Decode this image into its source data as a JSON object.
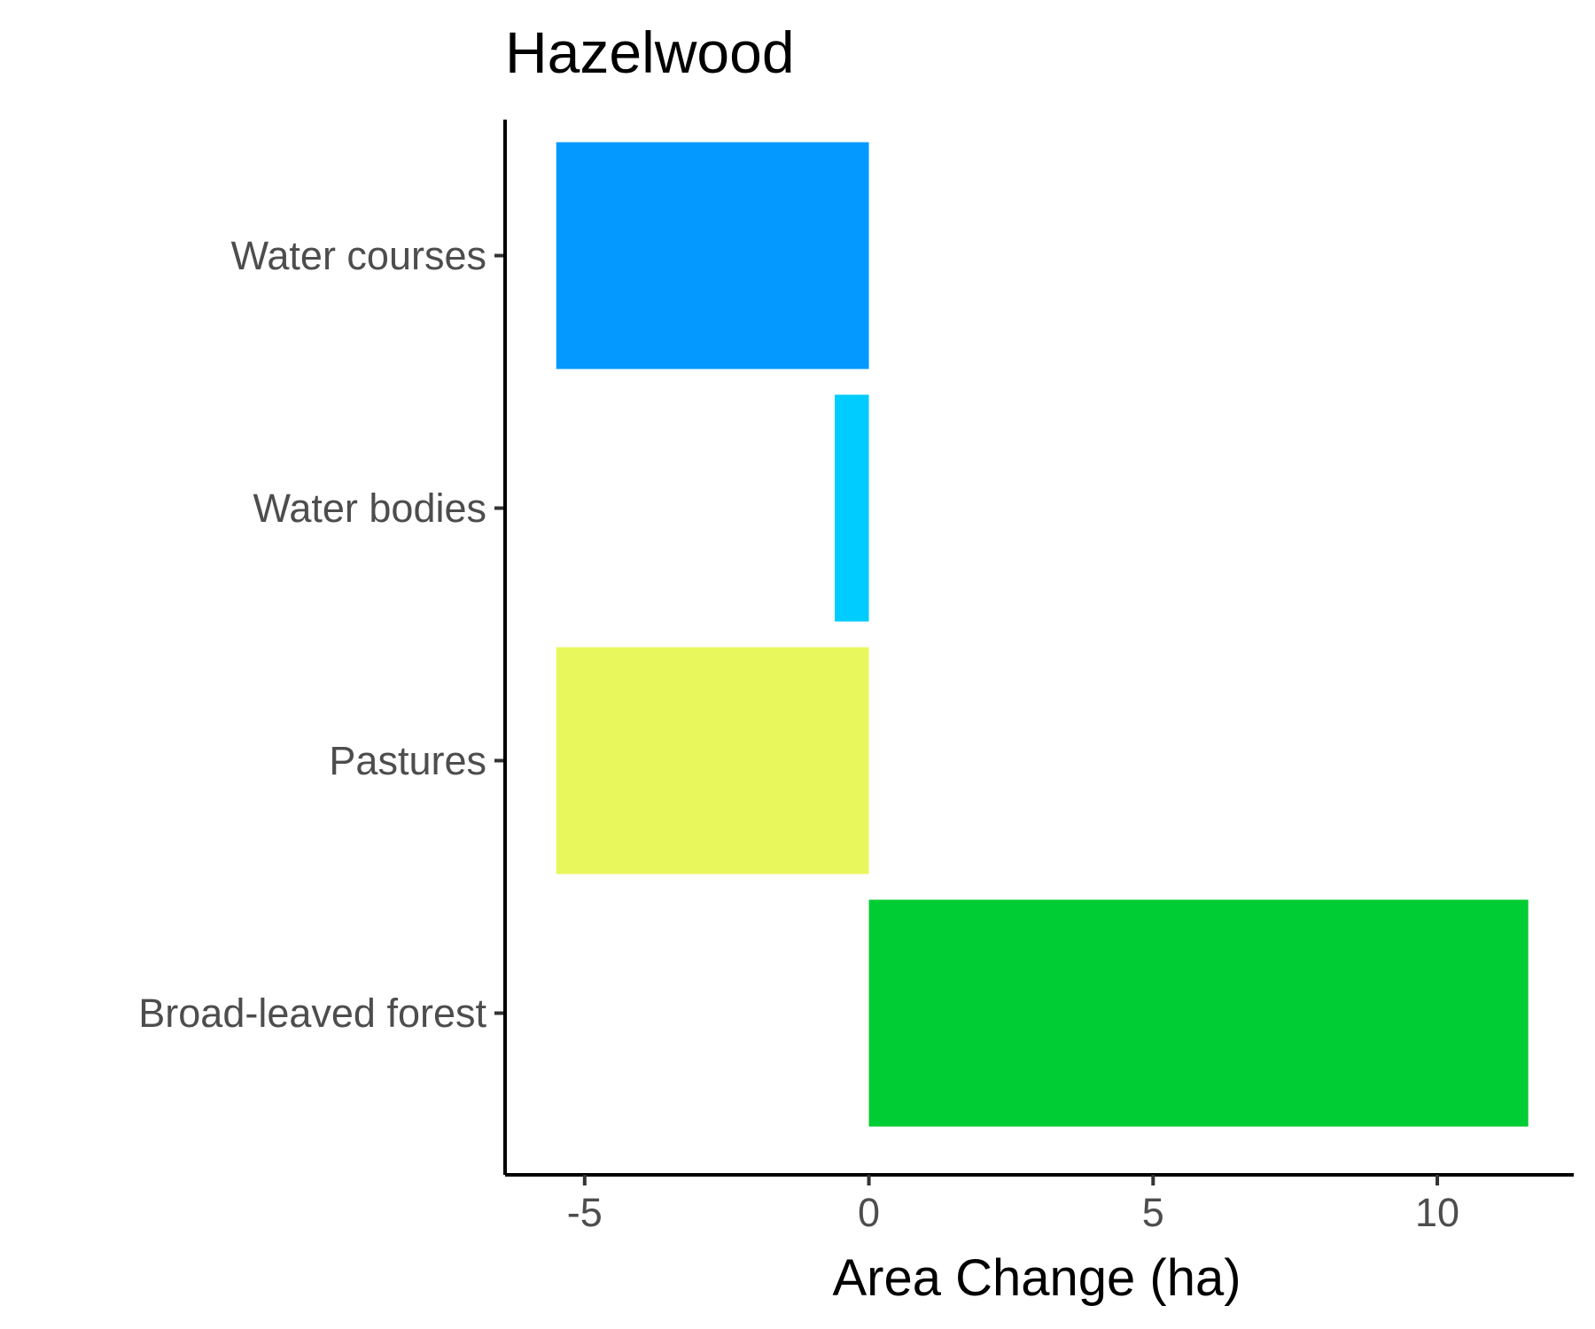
{
  "chart_data": {
    "type": "bar",
    "orientation": "horizontal",
    "title": "Hazelwood",
    "xlabel": "Area Change (ha)",
    "ylabel": "",
    "categories": [
      "Water courses",
      "Water bodies",
      "Pastures",
      "Broad-leaved forest"
    ],
    "values": [
      -5.5,
      -0.6,
      -5.5,
      11.6
    ],
    "colors": [
      "#0499ff",
      "#00ccff",
      "#e8f75b",
      "#00cc33"
    ],
    "xlim": [
      -6.4,
      12.4
    ],
    "xticks": [
      -5,
      0,
      5,
      10
    ],
    "xtick_labels": [
      "-5",
      "0",
      "5",
      "10"
    ],
    "grid": false,
    "legend": "none"
  }
}
